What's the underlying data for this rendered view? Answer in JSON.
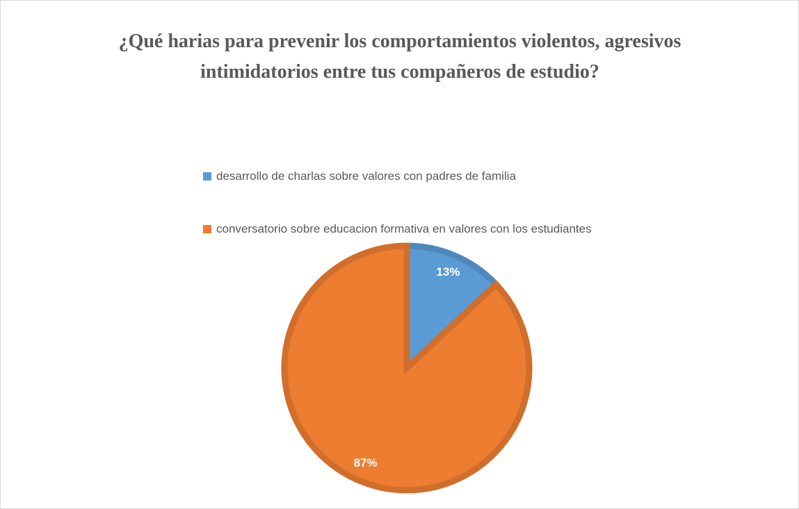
{
  "chart_data": {
    "type": "pie",
    "title": "¿Qué harias para prevenir los comportamientos violentos, agresivos intimidatorios entre tus compañeros de estudio?",
    "categories": [
      "desarrollo de charlas sobre valores con padres de familia",
      "conversatorio sobre educacion formativa en valores con los estudiantes"
    ],
    "values": [
      13,
      87
    ],
    "value_labels": [
      "13%",
      "87%"
    ],
    "colors": [
      "#5b9bd5",
      "#ed7d31"
    ]
  }
}
